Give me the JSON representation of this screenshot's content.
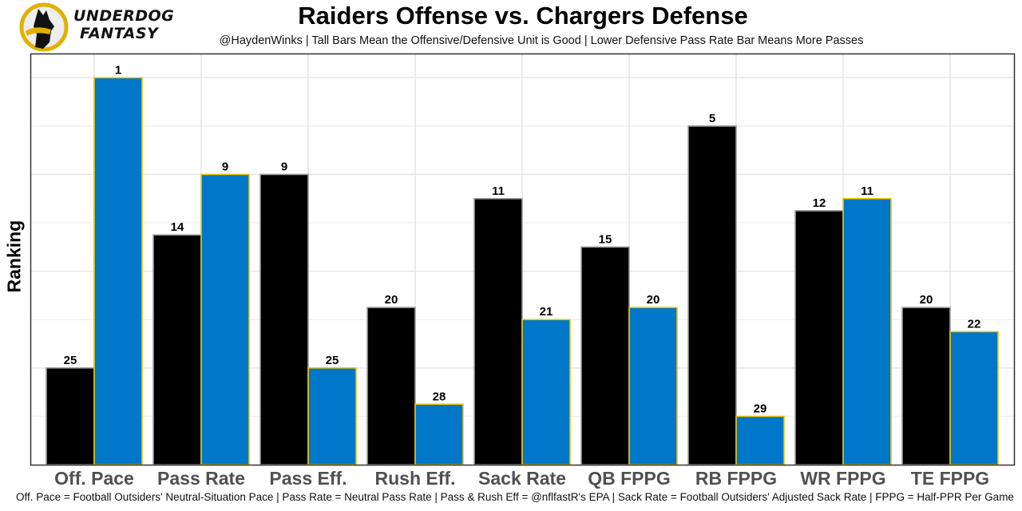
{
  "brand": {
    "name_line1": "UNDERDOG",
    "name_line2": "FANTASY",
    "logo_icon": "underdog-dog-icon"
  },
  "chart_data": {
    "type": "bar",
    "title": "Raiders Offense vs. Chargers Defense",
    "subtitle": "@HaydenWinks | Tall Bars Mean the Offensive/Defensive Unit is Good | Lower Defensive Pass Rate Bar Means More Passes",
    "xlabel": "",
    "ylabel": "Ranking",
    "caption": "Off. Pace = Football Outsiders' Neutral-Situation Pace | Pass Rate = Neutral Pass Rate | Pass & Rush Eff = @nflfastR's EPA | Sack Rate = Football Outsiders' Adjusted Sack Rate | FPPG = Half-PPR Per Game",
    "categories": [
      "Off. Pace",
      "Pass Rate",
      "Pass Eff.",
      "Rush Eff.",
      "Sack Rate",
      "QB FPPG",
      "RB FPPG",
      "WR FPPG",
      "TE FPPG"
    ],
    "series": [
      {
        "name": "Raiders Offense",
        "color": "#000000",
        "border": "#9e9e9e",
        "values": [
          25,
          14,
          9,
          20,
          11,
          15,
          5,
          12,
          20
        ]
      },
      {
        "name": "Chargers Defense",
        "color": "#0077c8",
        "border": "#f2c400",
        "values": [
          1,
          9,
          25,
          28,
          21,
          20,
          29,
          11,
          22
        ]
      }
    ],
    "bar_height_rule": "height = 33 - ranking (rank 1 is tallest)",
    "rank_base": 33,
    "ylim": [
      0,
      34
    ],
    "grid": true,
    "y_ticks_shown": false,
    "legend": "none"
  }
}
